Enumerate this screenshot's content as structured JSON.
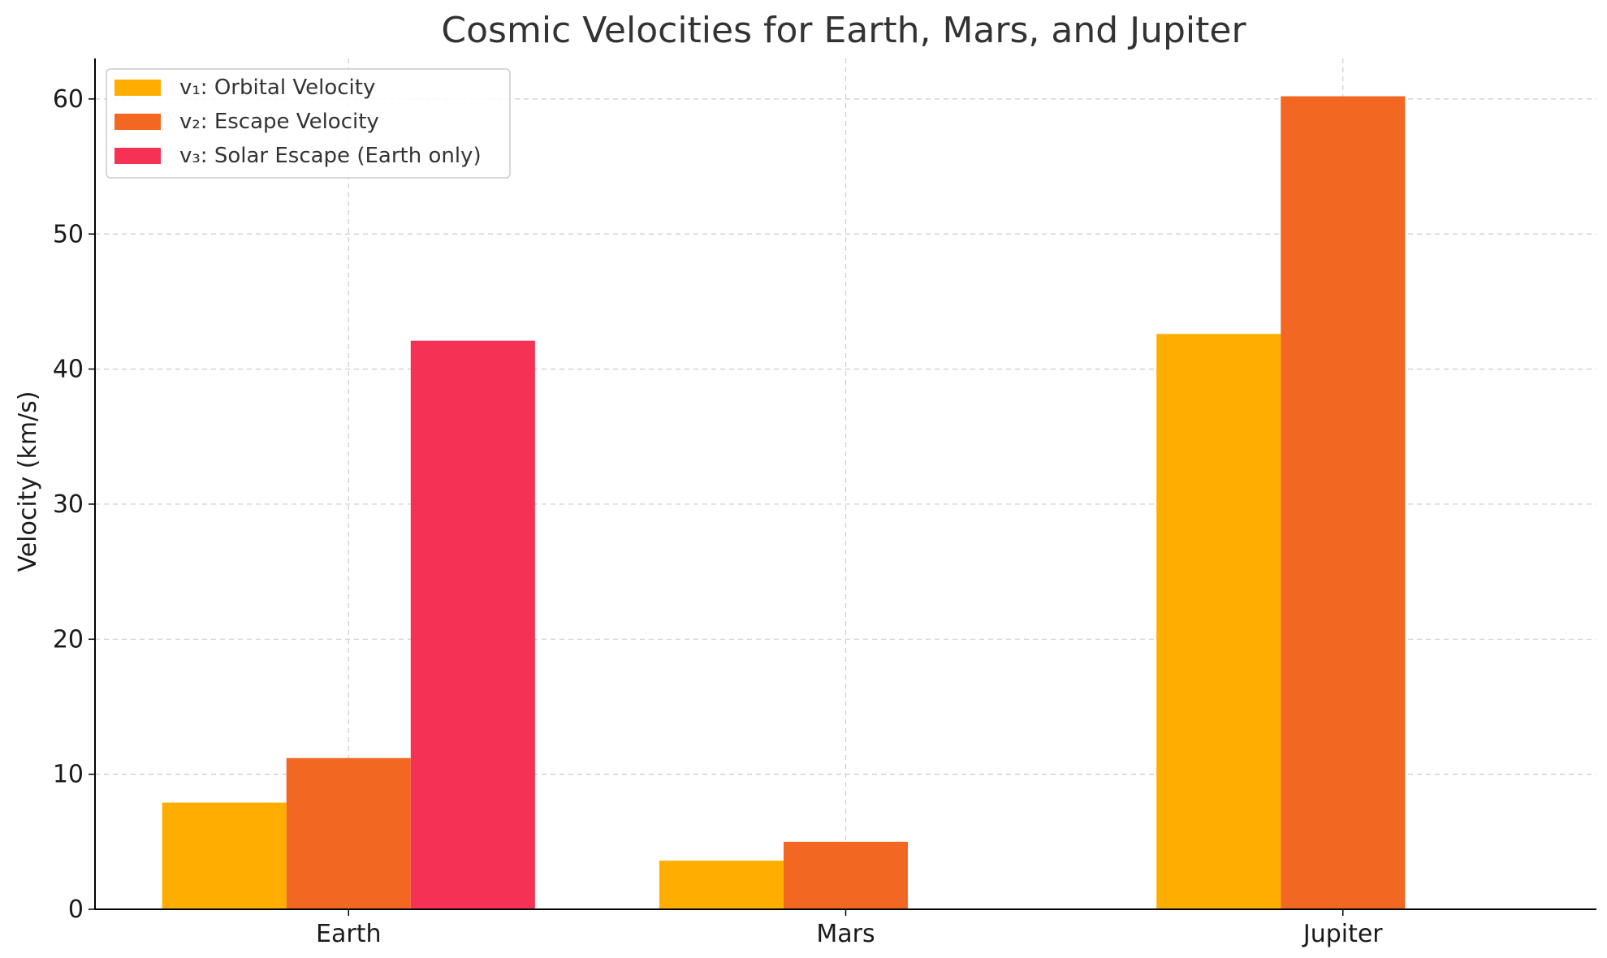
{
  "chart_data": {
    "type": "bar",
    "title": "Cosmic Velocities for Earth, Mars, and Jupiter",
    "xlabel": "",
    "ylabel": "Velocity (km/s)",
    "categories": [
      "Earth",
      "Mars",
      "Jupiter"
    ],
    "ylim": [
      0,
      63
    ],
    "yticks": [
      0,
      10,
      20,
      30,
      40,
      50,
      60
    ],
    "grid": true,
    "legend_position": "top-left",
    "series": [
      {
        "name": "v₁: Orbital Velocity",
        "color": "#FFAE00",
        "values": [
          7.9,
          3.6,
          42.6
        ]
      },
      {
        "name": "v₂: Escape Velocity",
        "color": "#F26822",
        "values": [
          11.2,
          5.0,
          60.2
        ]
      },
      {
        "name": "v₃: Solar Escape (Earth only)",
        "color": "#F53155",
        "values": [
          42.1,
          null,
          null
        ]
      }
    ]
  }
}
